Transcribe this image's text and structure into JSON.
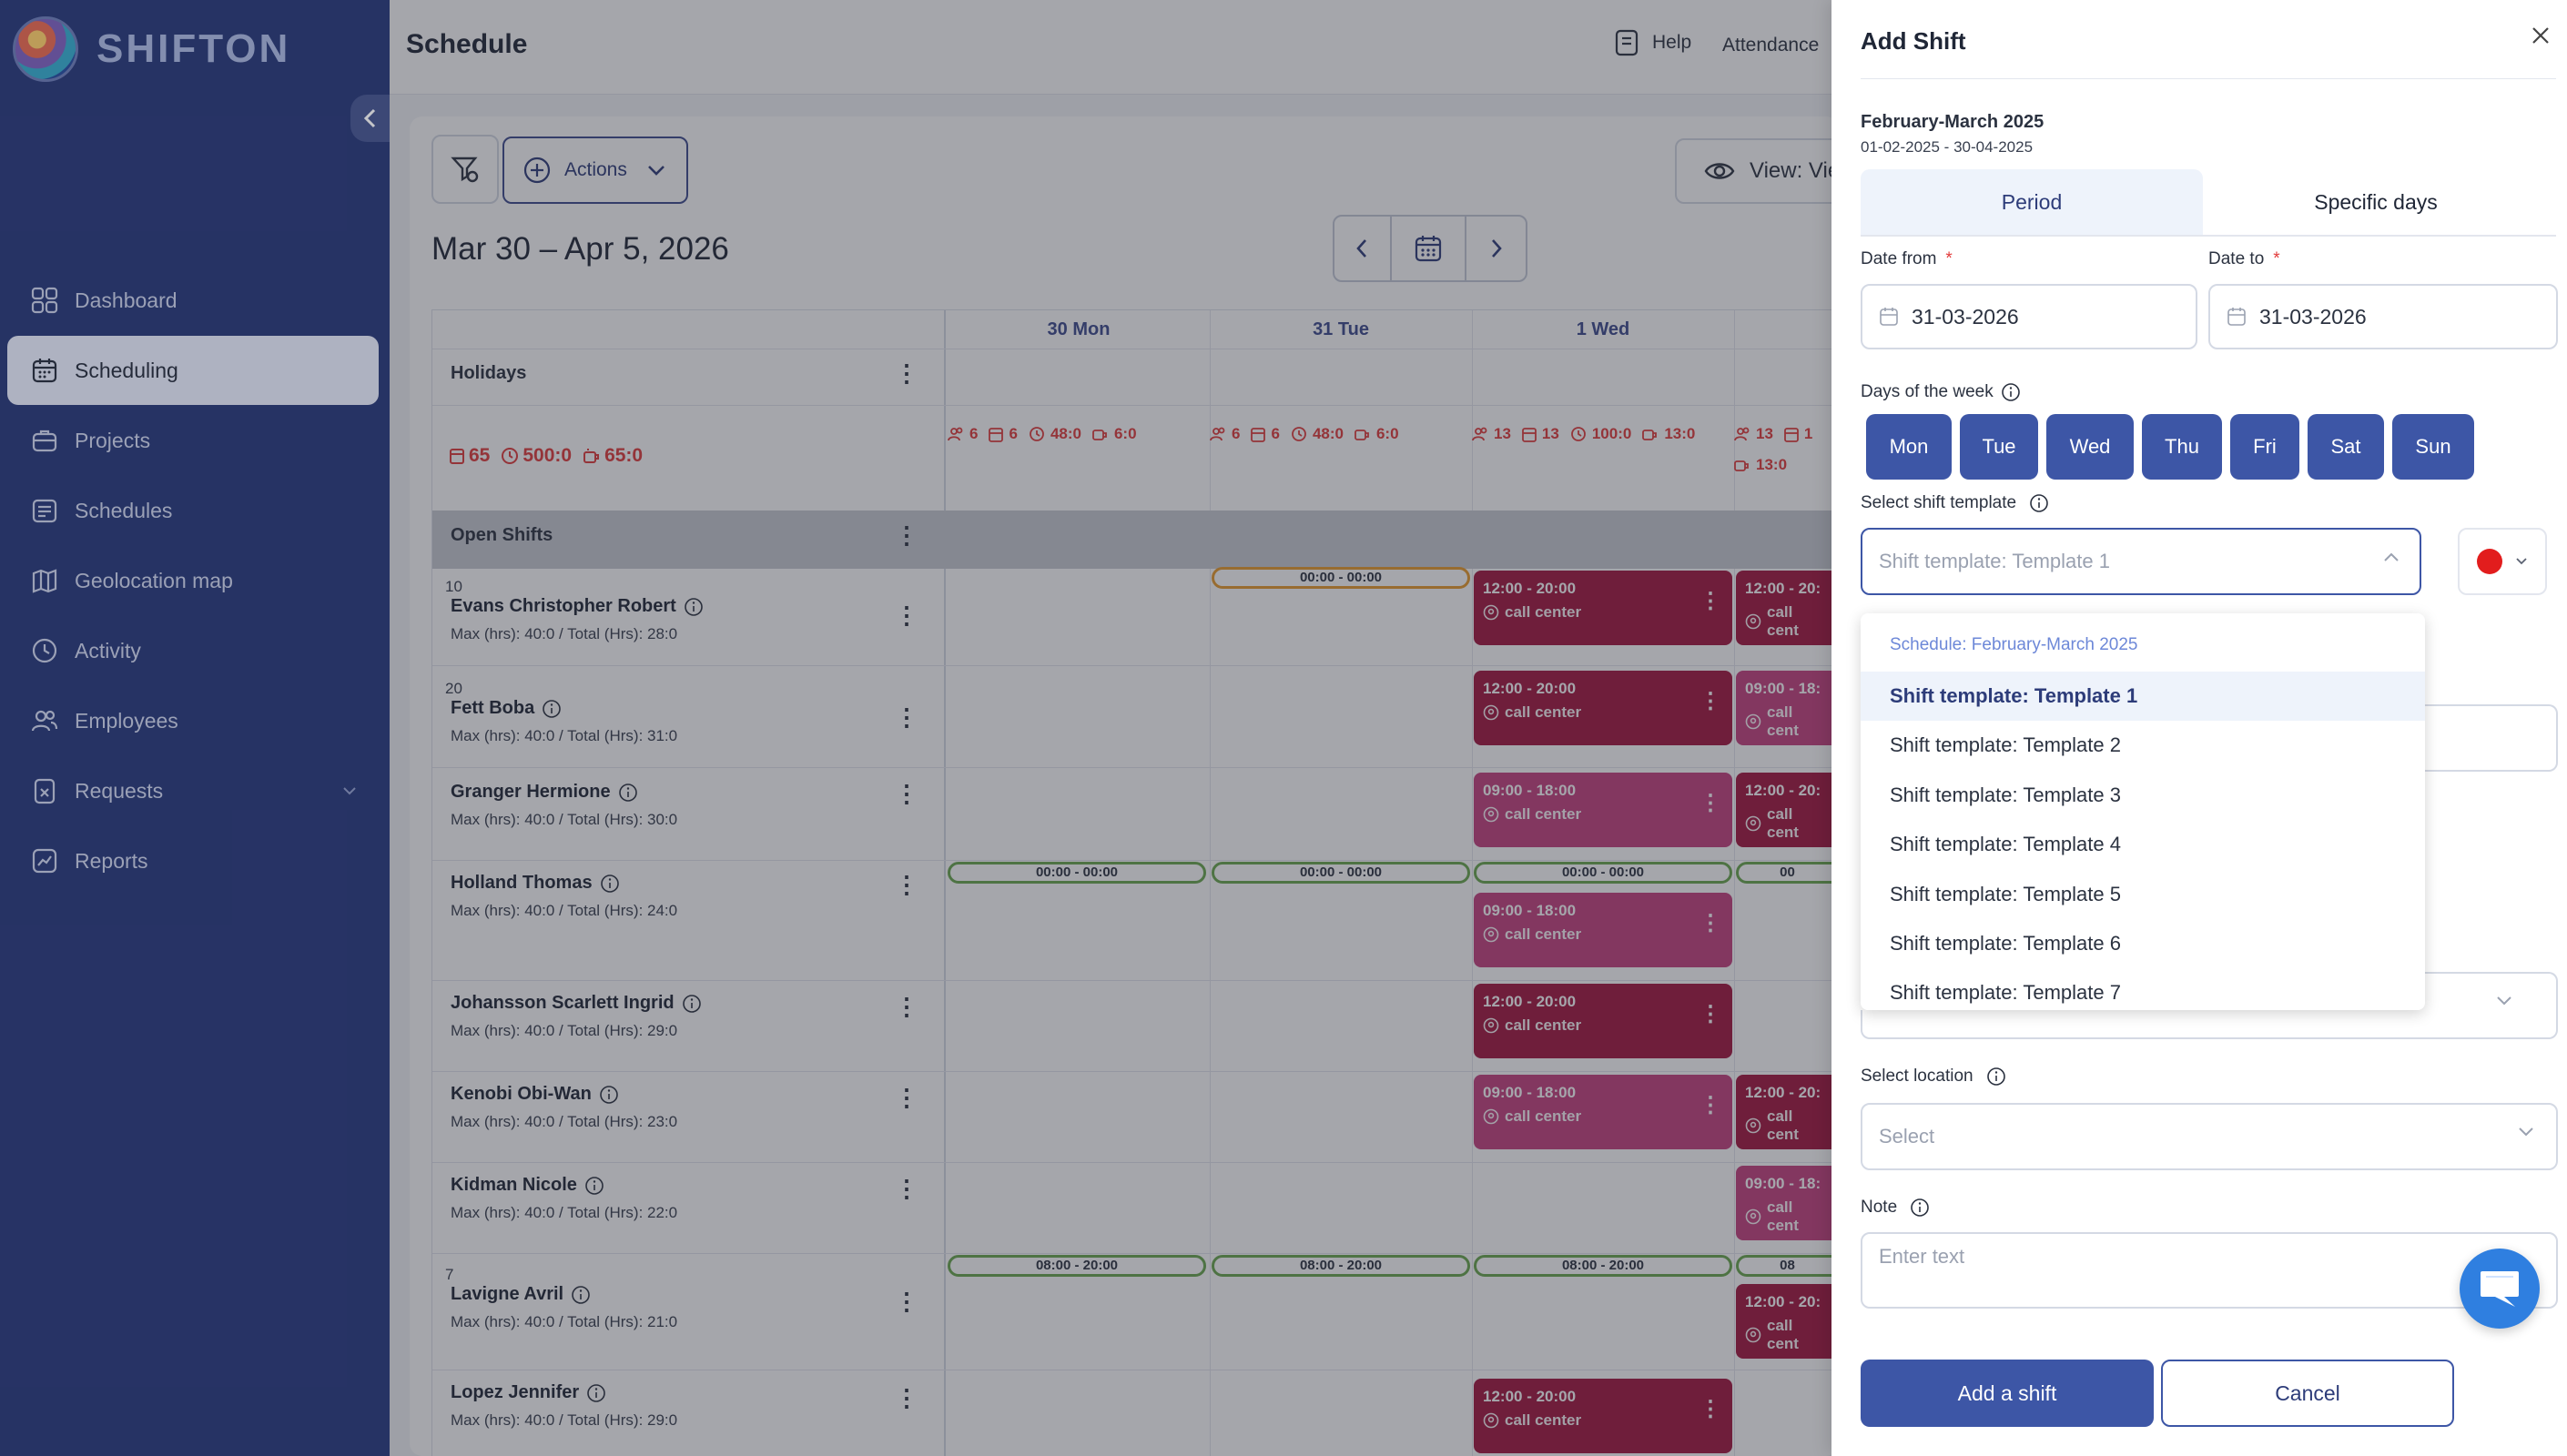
{
  "app": {
    "logo_text": "SHIFTON"
  },
  "sidebar": {
    "items": [
      {
        "label": "Dashboard",
        "icon": "grid-icon"
      },
      {
        "label": "Scheduling",
        "icon": "calendar-icon",
        "active": true
      },
      {
        "label": "Projects",
        "icon": "briefcase-icon"
      },
      {
        "label": "Schedules",
        "icon": "schedule-list-icon"
      },
      {
        "label": "Geolocation map",
        "icon": "map-icon"
      },
      {
        "label": "Activity",
        "icon": "clock-icon"
      },
      {
        "label": "Employees",
        "icon": "users-icon"
      },
      {
        "label": "Requests",
        "icon": "request-icon"
      },
      {
        "label": "Reports",
        "icon": "chart-icon"
      }
    ]
  },
  "header": {
    "title": "Schedule",
    "help": "Help",
    "attendance": "Attendance"
  },
  "toolbar": {
    "actions": "Actions",
    "view": "View: Vie"
  },
  "schedule": {
    "range": "Mar 30 – Apr 5, 2026",
    "days": [
      "30 Mon",
      "31 Tue",
      "1 Wed"
    ],
    "holidays_label": "Holidays",
    "totals": {
      "people": "65",
      "hours": "500:0",
      "breaks": "65:0"
    },
    "day_stats": [
      {
        "people": "6",
        "shifts": "6",
        "hours": "48:0",
        "breaks": "6:0"
      },
      {
        "people": "6",
        "shifts": "6",
        "hours": "48:0",
        "breaks": "6:0"
      },
      {
        "people": "13",
        "shifts": "13",
        "hours": "100:0",
        "breaks": "13:0"
      },
      {
        "people": "13",
        "shifts": "1",
        "hours": "",
        "breaks": "13:0"
      }
    ],
    "open_shifts_label": "Open Shifts",
    "employees": [
      {
        "num": "10",
        "name": "Evans Christopher Robert",
        "meta": "Max (hrs): 40:0 / Total (Hrs): 28:0"
      },
      {
        "num": "20",
        "name": "Fett Boba",
        "meta": "Max (hrs): 40:0 / Total (Hrs): 31:0"
      },
      {
        "num": "",
        "name": "Granger Hermione",
        "meta": "Max (hrs): 40:0 / Total (Hrs): 30:0"
      },
      {
        "num": "",
        "name": "Holland Thomas",
        "meta": "Max (hrs): 40:0 / Total (Hrs): 24:0"
      },
      {
        "num": "",
        "name": "Johansson Scarlett Ingrid",
        "meta": "Max (hrs): 40:0 / Total (Hrs): 29:0"
      },
      {
        "num": "",
        "name": "Kenobi Obi-Wan",
        "meta": "Max (hrs): 40:0 / Total (Hrs): 23:0"
      },
      {
        "num": "",
        "name": "Kidman Nicole",
        "meta": "Max (hrs): 40:0 / Total (Hrs): 22:0"
      },
      {
        "num": "7",
        "name": "Lavigne Avril",
        "meta": "Max (hrs): 40:0 / Total (Hrs): 21:0"
      },
      {
        "num": "",
        "name": "Lopez Jennifer",
        "meta": "Max (hrs): 40:0 / Total (Hrs): 29:0"
      }
    ],
    "shift_texts": {
      "t1220": "12:00 - 20:00",
      "t0918": "09:00 - 18:00",
      "t1220c": "12:00 - 20:",
      "t0918c": "09:00 - 18:",
      "t0000": "00:00 - 00:00",
      "t0820": "08:00 - 20:00",
      "t0820c": "08",
      "t0000c": "00",
      "loc": "call center",
      "loc_c": "call cent"
    }
  },
  "panel": {
    "title": "Add Shift",
    "schedule_name": "February-March 2025",
    "schedule_range": "01-02-2025 - 30-04-2025",
    "tabs": [
      "Period",
      "Specific days"
    ],
    "date_from_label": "Date from",
    "date_to_label": "Date to",
    "required_mark": "*",
    "date_from": "31-03-2026",
    "date_to": "31-03-2026",
    "days_label": "Days of the week",
    "weekdays": [
      "Mon",
      "Tue",
      "Wed",
      "Thu",
      "Fri",
      "Sat",
      "Sun"
    ],
    "template_label": "Select shift template",
    "template_placeholder": "Shift template: Template 1",
    "template_color": "#e21d1d",
    "dropdown": {
      "group": "Schedule: February-March 2025",
      "items": [
        "Shift template: Template 1",
        "Shift template: Template 2",
        "Shift template: Template 3",
        "Shift template: Template 4",
        "Shift template: Template 5",
        "Shift template: Template 6",
        "Shift template: Template 7"
      ],
      "selected": 0
    },
    "location_label": "Select location",
    "location_placeholder": "Select",
    "note_label": "Note",
    "note_placeholder": "Enter text",
    "add_button": "Add a shift",
    "cancel_button": "Cancel"
  },
  "colors": {
    "sidebar": "#2d3c79",
    "primary": "#3d56a6",
    "shift_dark": "#a3153e",
    "shift_mid": "#c5417e",
    "alert": "#e23b3b"
  }
}
